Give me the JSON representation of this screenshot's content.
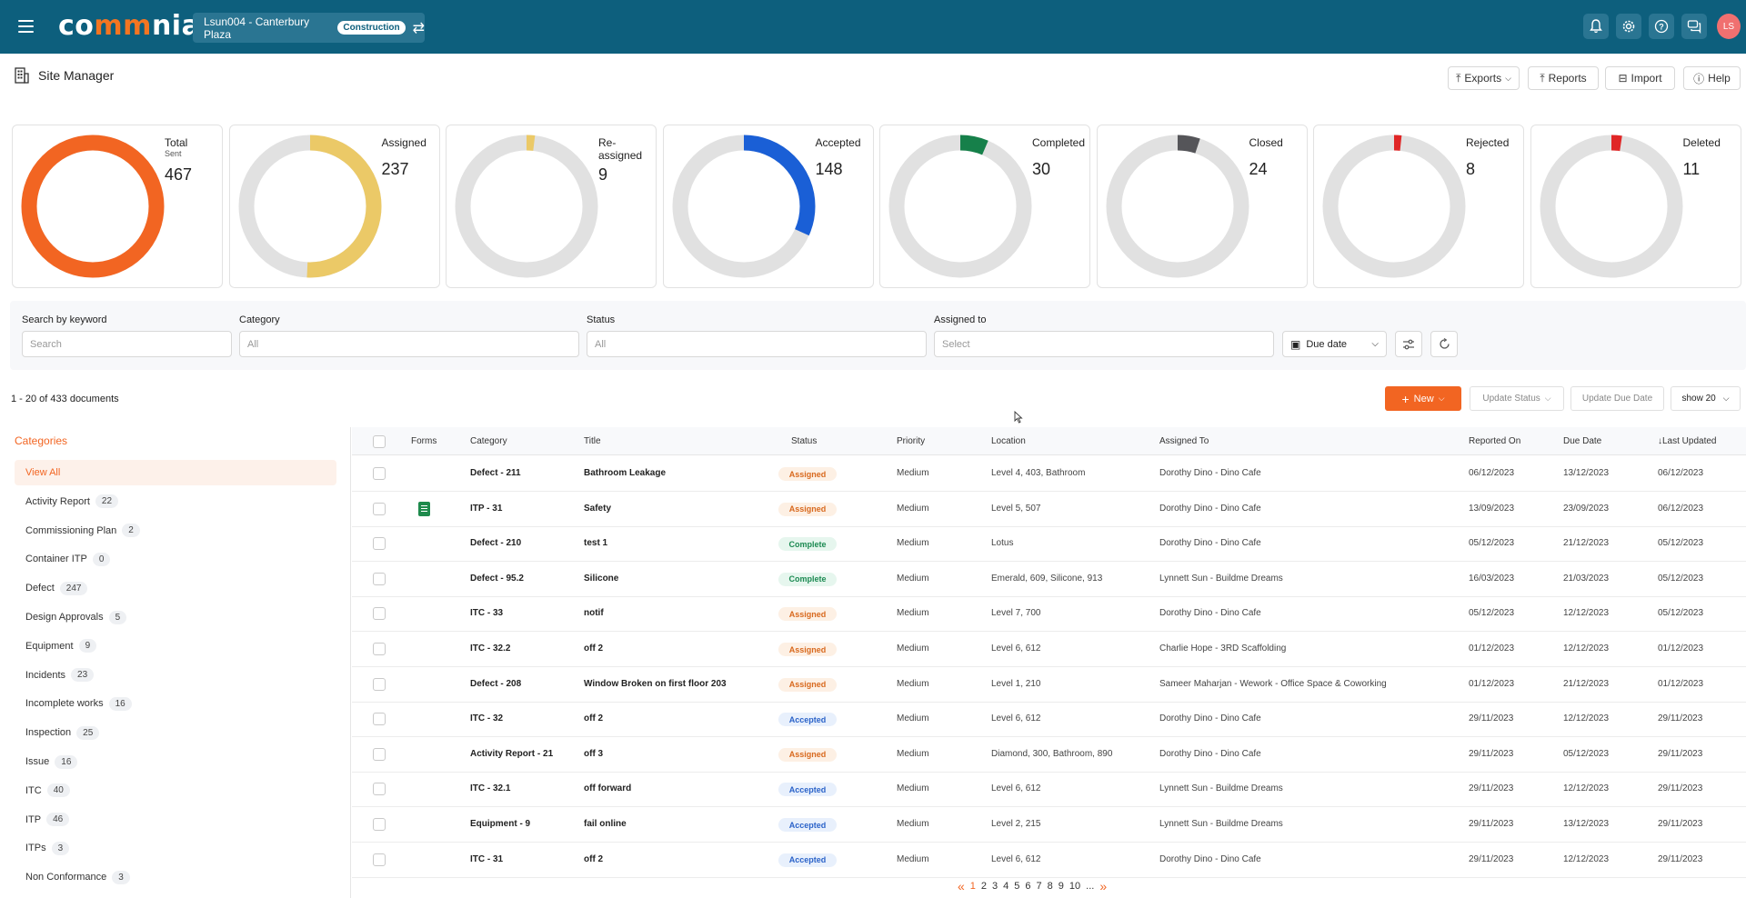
{
  "app": {
    "logo": {
      "part1": "co",
      "part2": "mm",
      "part3": "nia"
    },
    "project_name": "Lsun004 - Canterbury Plaza",
    "project_badge": "Construction",
    "avatar_initials": "LS"
  },
  "page": {
    "title": "Site Manager"
  },
  "header_buttons": {
    "exports": "Exports",
    "reports": "Reports",
    "import": "Import",
    "help": "Help"
  },
  "stats": [
    {
      "label": "Total",
      "sub": "Sent",
      "value": "467",
      "fraction": 1.0,
      "color": "#f26522"
    },
    {
      "label": "Assigned",
      "sub": "",
      "value": "237",
      "fraction": 0.507,
      "color": "#ebc967"
    },
    {
      "label": "Re-",
      "label2": "assigned",
      "value": "9",
      "fraction": 0.019,
      "color": "#ebc967"
    },
    {
      "label": "Accepted",
      "sub": "",
      "value": "148",
      "fraction": 0.317,
      "color": "#1a5fd6"
    },
    {
      "label": "Completed",
      "sub": "",
      "value": "30",
      "fraction": 0.064,
      "color": "#16804a"
    },
    {
      "label": "Closed",
      "sub": "",
      "value": "24",
      "fraction": 0.051,
      "color": "#555559"
    },
    {
      "label": "Rejected",
      "sub": "",
      "value": "8",
      "fraction": 0.017,
      "color": "#e02626"
    },
    {
      "label": "Deleted",
      "sub": "",
      "value": "11",
      "fraction": 0.024,
      "color": "#e02626"
    }
  ],
  "filters": {
    "keyword_label": "Search by keyword",
    "keyword_placeholder": "Search",
    "category_label": "Category",
    "category_value": "All",
    "status_label": "Status",
    "status_value": "All",
    "assigned_label": "Assigned to",
    "assigned_value": "Select",
    "due_date": "Due date"
  },
  "actions": {
    "doc_count": "1 - 20 of 433 documents",
    "new": "New",
    "update_status": "Update Status",
    "update_due_date": "Update Due Date",
    "show": "show 20"
  },
  "categories": {
    "title": "Categories",
    "items": [
      {
        "label": "View All",
        "count": ""
      },
      {
        "label": "Activity Report",
        "count": "22"
      },
      {
        "label": "Commissioning Plan",
        "count": "2"
      },
      {
        "label": "Container ITP",
        "count": "0"
      },
      {
        "label": "Defect",
        "count": "247"
      },
      {
        "label": "Design Approvals",
        "count": "5"
      },
      {
        "label": "Equipment",
        "count": "9"
      },
      {
        "label": "Incidents",
        "count": "23"
      },
      {
        "label": "Incomplete works",
        "count": "16"
      },
      {
        "label": "Inspection",
        "count": "25"
      },
      {
        "label": "Issue",
        "count": "16"
      },
      {
        "label": "ITC",
        "count": "40"
      },
      {
        "label": "ITP",
        "count": "46"
      },
      {
        "label": "ITPs",
        "count": "3"
      },
      {
        "label": "Non Conformance",
        "count": "3"
      }
    ]
  },
  "table": {
    "headers": {
      "forms": "Forms",
      "category": "Category",
      "title": "Title",
      "status": "Status",
      "priority": "Priority",
      "location": "Location",
      "assigned_to": "Assigned To",
      "reported_on": "Reported On",
      "due_date": "Due Date",
      "last_updated": "↓Last Updated"
    },
    "rows": [
      {
        "form": false,
        "category": "Defect - 211",
        "title": "Bathroom Leakage",
        "status": "Assigned",
        "priority": "Medium",
        "location": "Level 4, 403, Bathroom",
        "assigned_to": "Dorothy Dino - Dino Cafe",
        "reported_on": "06/12/2023",
        "due_date": "13/12/2023",
        "last_updated": "06/12/2023"
      },
      {
        "form": true,
        "category": "ITP - 31",
        "title": "Safety",
        "status": "Assigned",
        "priority": "Medium",
        "location": "Level 5, 507",
        "assigned_to": "Dorothy Dino - Dino Cafe",
        "reported_on": "13/09/2023",
        "due_date": "23/09/2023",
        "last_updated": "06/12/2023"
      },
      {
        "form": false,
        "category": "Defect - 210",
        "title": "test 1",
        "status": "Complete",
        "priority": "Medium",
        "location": "Lotus",
        "assigned_to": "Dorothy Dino - Dino Cafe",
        "reported_on": "05/12/2023",
        "due_date": "21/12/2023",
        "last_updated": "05/12/2023"
      },
      {
        "form": false,
        "category": "Defect - 95.2",
        "title": "Silicone",
        "status": "Complete",
        "priority": "Medium",
        "location": "Emerald, 609, Silicone, 913",
        "assigned_to": "Lynnett Sun - Buildme Dreams",
        "reported_on": "16/03/2023",
        "due_date": "21/03/2023",
        "last_updated": "05/12/2023"
      },
      {
        "form": false,
        "category": "ITC - 33",
        "title": "notif",
        "status": "Assigned",
        "priority": "Medium",
        "location": "Level 7, 700",
        "assigned_to": "Dorothy Dino - Dino Cafe",
        "reported_on": "05/12/2023",
        "due_date": "12/12/2023",
        "last_updated": "05/12/2023"
      },
      {
        "form": false,
        "category": "ITC - 32.2",
        "title": "off 2",
        "status": "Assigned",
        "priority": "Medium",
        "location": "Level 6, 612",
        "assigned_to": "Charlie Hope - 3RD Scaffolding",
        "reported_on": "01/12/2023",
        "due_date": "12/12/2023",
        "last_updated": "01/12/2023"
      },
      {
        "form": false,
        "category": "Defect - 208",
        "title": "Window Broken on first floor 203",
        "status": "Assigned",
        "priority": "Medium",
        "location": "Level 1, 210",
        "assigned_to": "Sameer Maharjan - Wework - Office Space & Coworking",
        "reported_on": "01/12/2023",
        "due_date": "21/12/2023",
        "last_updated": "01/12/2023"
      },
      {
        "form": false,
        "category": "ITC - 32",
        "title": "off 2",
        "status": "Accepted",
        "priority": "Medium",
        "location": "Level 6, 612",
        "assigned_to": "Dorothy Dino - Dino Cafe",
        "reported_on": "29/11/2023",
        "due_date": "12/12/2023",
        "last_updated": "29/11/2023"
      },
      {
        "form": false,
        "category": "Activity Report - 21",
        "title": "off 3",
        "status": "Assigned",
        "priority": "Medium",
        "location": "Diamond, 300, Bathroom, 890",
        "assigned_to": "Dorothy Dino - Dino Cafe",
        "reported_on": "29/11/2023",
        "due_date": "05/12/2023",
        "last_updated": "29/11/2023"
      },
      {
        "form": false,
        "category": "ITC - 32.1",
        "title": "off forward",
        "status": "Accepted",
        "priority": "Medium",
        "location": "Level 6, 612",
        "assigned_to": "Lynnett Sun - Buildme Dreams",
        "reported_on": "29/11/2023",
        "due_date": "12/12/2023",
        "last_updated": "29/11/2023"
      },
      {
        "form": false,
        "category": "Equipment - 9",
        "title": "fail online",
        "status": "Accepted",
        "priority": "Medium",
        "location": "Level 2, 215",
        "assigned_to": "Lynnett Sun - Buildme Dreams",
        "reported_on": "29/11/2023",
        "due_date": "13/12/2023",
        "last_updated": "29/11/2023"
      },
      {
        "form": false,
        "category": "ITC - 31",
        "title": "off 2",
        "status": "Accepted",
        "priority": "Medium",
        "location": "Level 6, 612",
        "assigned_to": "Dorothy Dino - Dino Cafe",
        "reported_on": "29/11/2023",
        "due_date": "12/12/2023",
        "last_updated": "29/11/2023"
      }
    ]
  },
  "status_colors": {
    "Assigned": {
      "bg": "#fdf0e4",
      "fg": "#d8691e"
    },
    "Complete": {
      "bg": "#e6f6ee",
      "fg": "#1c8a52"
    },
    "Accepted": {
      "bg": "#e8f0fc",
      "fg": "#2b63c9"
    }
  },
  "pagination": {
    "prev": "«",
    "pages": [
      "1",
      "2",
      "3",
      "4",
      "5",
      "6",
      "7",
      "8",
      "9",
      "10"
    ],
    "ellipsis": "...",
    "next": "»"
  }
}
